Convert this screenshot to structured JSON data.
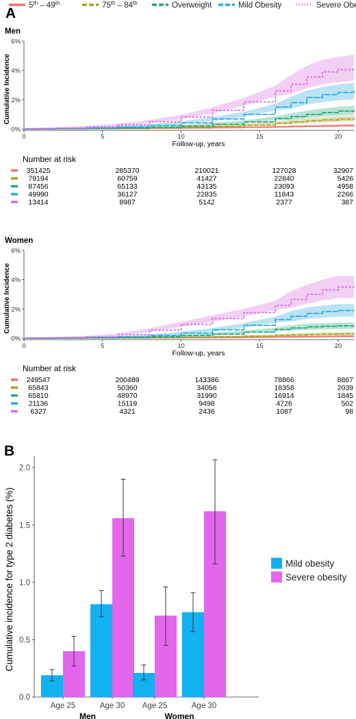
{
  "legend_top": [
    {
      "html": "5<tspan baseline-shift='super' font-size='8'>th</tspan> – 49<tspan baseline-shift='super' font-size='8'>th</tspan>",
      "color": "#E8736B",
      "dash": ""
    },
    {
      "html": "75<tspan baseline-shift='super' font-size='8'>th</tspan> – 84<tspan baseline-shift='super' font-size='8'>th</tspan>",
      "color": "#A8A020",
      "dash": "7,3"
    },
    {
      "html": "Overweight",
      "color": "#1FA67A",
      "dash": "7,3"
    },
    {
      "html": "Mild Obesity",
      "color": "#2AA8DC",
      "dash": "7,3"
    },
    {
      "html": "Severe Obesity",
      "color": "#D86BE0",
      "dash": "1,3"
    }
  ],
  "panel_a_label": "A",
  "panel_b_label": "B",
  "chart_data": [
    {
      "type": "line",
      "title": "Men",
      "xlabel": "Follow-up, years",
      "ylabel": "Cumulative Incidence",
      "xlim": [
        0,
        21
      ],
      "ylim": [
        0,
        6
      ],
      "xticks": [
        "0",
        "5",
        "10",
        "15",
        "20"
      ],
      "yticks": [
        "0%",
        "2%",
        "4%",
        "6%"
      ],
      "x": [
        0,
        2,
        4,
        6,
        8,
        10,
        12,
        14,
        16,
        17,
        18,
        19,
        20,
        21
      ],
      "series": [
        {
          "name": "5th – 49th",
          "color": "#E8736B",
          "values": [
            0,
            0.01,
            0.02,
            0.03,
            0.05,
            0.07,
            0.09,
            0.12,
            0.15,
            0.17,
            0.19,
            0.21,
            0.23,
            0.25
          ]
        },
        {
          "name": "75th – 84th",
          "color": "#A8A020",
          "values": [
            0,
            0.01,
            0.03,
            0.05,
            0.08,
            0.12,
            0.18,
            0.26,
            0.4,
            0.48,
            0.56,
            0.62,
            0.68,
            0.72
          ]
        },
        {
          "name": "Overweight",
          "color": "#1FA67A",
          "values": [
            0,
            0.02,
            0.04,
            0.07,
            0.12,
            0.2,
            0.32,
            0.48,
            0.72,
            0.85,
            1.0,
            1.12,
            1.22,
            1.28
          ]
        },
        {
          "name": "Mild Obesity",
          "color": "#2AA8DC",
          "values": [
            0,
            0.03,
            0.07,
            0.14,
            0.25,
            0.42,
            0.68,
            1.0,
            1.5,
            1.8,
            2.15,
            2.35,
            2.5,
            2.6
          ]
        },
        {
          "name": "Severe Obesity",
          "color": "#D86BE0",
          "values": [
            0,
            0.06,
            0.14,
            0.28,
            0.5,
            0.82,
            1.28,
            1.85,
            2.6,
            3.05,
            3.55,
            3.9,
            4.05,
            4.2
          ]
        }
      ],
      "risk_title": "Number at risk",
      "risk_table": [
        [
          "351425",
          "285370",
          "210021",
          "127028",
          "32907"
        ],
        [
          "79194",
          "60759",
          "41427",
          "22840",
          "5426"
        ],
        [
          "87456",
          "65133",
          "43135",
          "23093",
          "4958"
        ],
        [
          "49990",
          "36127",
          "22835",
          "11843",
          "2266"
        ],
        [
          "13414",
          "8987",
          "5142",
          "2377",
          "387"
        ]
      ]
    },
    {
      "type": "line",
      "title": "Women",
      "xlabel": "Follow-up, years",
      "ylabel": "Cumulative Incidence",
      "xlim": [
        0,
        21
      ],
      "ylim": [
        0,
        6
      ],
      "xticks": [
        "0",
        "5",
        "10",
        "15",
        "20"
      ],
      "yticks": [
        "0%",
        "2%",
        "4%",
        "6%"
      ],
      "x": [
        0,
        2,
        4,
        6,
        8,
        10,
        12,
        14,
        16,
        17,
        18,
        19,
        20,
        21
      ],
      "series": [
        {
          "name": "5th – 49th",
          "color": "#E8736B",
          "values": [
            0,
            0.005,
            0.01,
            0.02,
            0.03,
            0.04,
            0.05,
            0.07,
            0.09,
            0.1,
            0.11,
            0.12,
            0.13,
            0.13
          ]
        },
        {
          "name": "75th – 84th",
          "color": "#A8A020",
          "values": [
            0,
            0.01,
            0.02,
            0.03,
            0.05,
            0.07,
            0.1,
            0.14,
            0.2,
            0.23,
            0.26,
            0.28,
            0.3,
            0.3
          ]
        },
        {
          "name": "Overweight",
          "color": "#1FA67A",
          "values": [
            0,
            0.01,
            0.02,
            0.05,
            0.1,
            0.18,
            0.28,
            0.42,
            0.6,
            0.7,
            0.78,
            0.82,
            0.85,
            0.85
          ]
        },
        {
          "name": "Mild Obesity",
          "color": "#2AA8DC",
          "values": [
            0,
            0.02,
            0.05,
            0.1,
            0.2,
            0.35,
            0.58,
            0.88,
            1.28,
            1.5,
            1.7,
            1.82,
            1.9,
            1.9
          ]
        },
        {
          "name": "Severe Obesity",
          "color": "#D86BE0",
          "values": [
            0,
            0.04,
            0.1,
            0.25,
            0.55,
            0.95,
            1.35,
            1.75,
            2.25,
            2.65,
            3.0,
            3.3,
            3.5,
            3.5
          ]
        }
      ],
      "risk_title": "Number at risk",
      "risk_table": [
        [
          "249547",
          "200489",
          "143386",
          "78866",
          "8867"
        ],
        [
          "65843",
          "50360",
          "34056",
          "18358",
          "2039"
        ],
        [
          "65810",
          "48970",
          "31990",
          "16914",
          "1845"
        ],
        [
          "21136",
          "15119",
          "9498",
          "4726",
          "502"
        ],
        [
          "6327",
          "4321",
          "2436",
          "1087",
          "98"
        ]
      ]
    },
    {
      "type": "bar",
      "ylabel": "Cumulative incidence for type 2 diabetes (%)",
      "ylim": [
        0,
        2.1
      ],
      "yticks": [
        "0.0",
        "0.5",
        "1.0",
        "1.5",
        "2.0"
      ],
      "groups": [
        "Men",
        "Women"
      ],
      "categories": [
        "Age 25",
        "Age 30"
      ],
      "series": [
        {
          "name": "Mild obesity",
          "color": "#12B1F0",
          "values": [
            [
              0.19,
              0.81
            ],
            [
              0.21,
              0.74
            ]
          ],
          "ci_low": [
            [
              0.14,
              0.7
            ],
            [
              0.15,
              0.57
            ]
          ],
          "ci_high": [
            [
              0.24,
              0.93
            ],
            [
              0.28,
              0.91
            ]
          ]
        },
        {
          "name": "Severe obesity",
          "color": "#E366EC",
          "values": [
            [
              0.4,
              1.56
            ],
            [
              0.71,
              1.62
            ]
          ],
          "ci_low": [
            [
              0.27,
              1.23
            ],
            [
              0.45,
              1.16
            ]
          ],
          "ci_high": [
            [
              0.53,
              1.9
            ],
            [
              0.96,
              2.07
            ]
          ]
        }
      ],
      "legend_position": "right"
    }
  ]
}
